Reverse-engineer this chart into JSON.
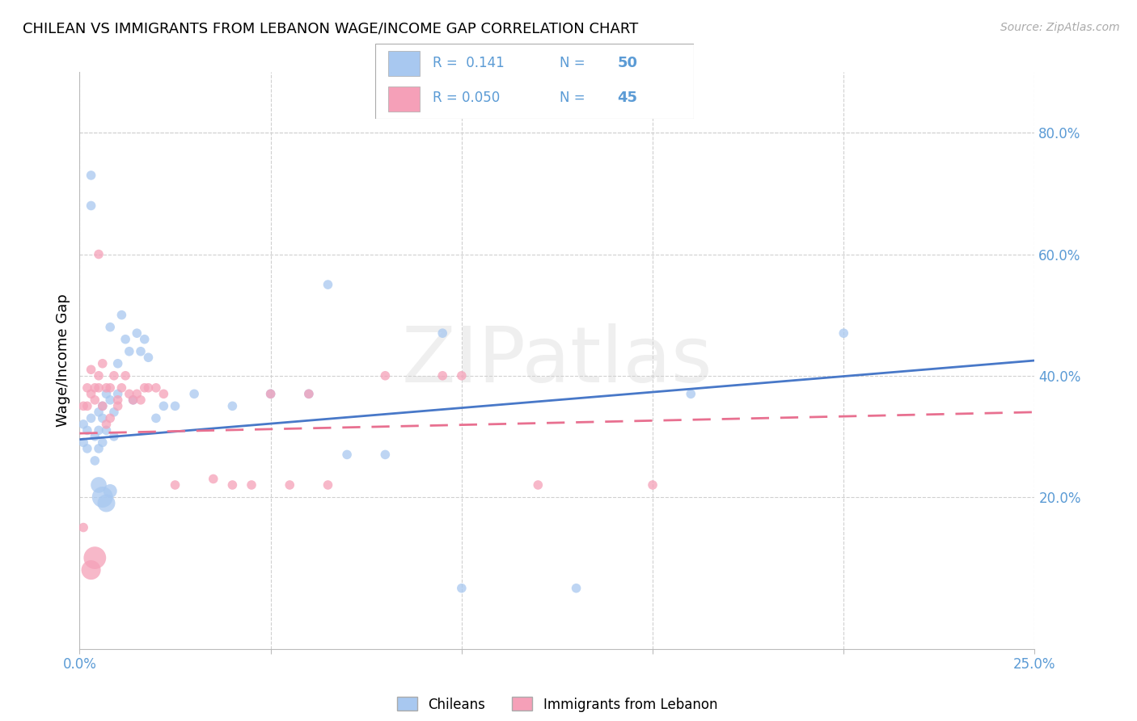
{
  "title": "CHILEAN VS IMMIGRANTS FROM LEBANON WAGE/INCOME GAP CORRELATION CHART",
  "source": "Source: ZipAtlas.com",
  "ylabel": "Wage/Income Gap",
  "xlim": [
    0.0,
    0.25
  ],
  "ylim": [
    -0.05,
    0.9
  ],
  "xtick_positions": [
    0.0,
    0.05,
    0.1,
    0.15,
    0.2,
    0.25
  ],
  "xtick_labels": [
    "0.0%",
    "",
    "",
    "",
    "",
    "25.0%"
  ],
  "ytick_positions": [
    0.2,
    0.4,
    0.6,
    0.8
  ],
  "ytick_labels": [
    "20.0%",
    "40.0%",
    "60.0%",
    "80.0%"
  ],
  "watermark": "ZIPatlas",
  "blue_color": "#A8C8F0",
  "pink_color": "#F5A0B8",
  "blue_line_color": "#4878C8",
  "pink_line_color": "#E87090",
  "axis_label_color": "#5B9BD5",
  "grid_color": "#D0D0D0",
  "chileans_x": [
    0.001,
    0.001,
    0.002,
    0.002,
    0.003,
    0.003,
    0.004,
    0.004,
    0.005,
    0.005,
    0.005,
    0.006,
    0.006,
    0.006,
    0.007,
    0.007,
    0.008,
    0.008,
    0.009,
    0.009,
    0.01,
    0.01,
    0.011,
    0.012,
    0.013,
    0.014,
    0.015,
    0.016,
    0.017,
    0.018,
    0.02,
    0.022,
    0.025,
    0.03,
    0.04,
    0.05,
    0.06,
    0.065,
    0.07,
    0.08,
    0.095,
    0.1,
    0.13,
    0.16,
    0.2,
    0.005,
    0.006,
    0.007,
    0.008,
    0.003
  ],
  "chileans_y": [
    0.32,
    0.29,
    0.31,
    0.28,
    0.68,
    0.33,
    0.3,
    0.26,
    0.34,
    0.28,
    0.31,
    0.35,
    0.29,
    0.33,
    0.37,
    0.31,
    0.36,
    0.48,
    0.34,
    0.3,
    0.42,
    0.37,
    0.5,
    0.46,
    0.44,
    0.36,
    0.47,
    0.44,
    0.46,
    0.43,
    0.33,
    0.35,
    0.35,
    0.37,
    0.35,
    0.37,
    0.37,
    0.55,
    0.27,
    0.27,
    0.47,
    0.05,
    0.05,
    0.37,
    0.47,
    0.22,
    0.2,
    0.19,
    0.21,
    0.73
  ],
  "chileans_size": [
    70,
    70,
    70,
    70,
    70,
    70,
    70,
    70,
    70,
    70,
    70,
    70,
    70,
    70,
    70,
    70,
    70,
    70,
    70,
    70,
    70,
    70,
    70,
    70,
    70,
    70,
    70,
    70,
    70,
    70,
    70,
    70,
    70,
    70,
    70,
    70,
    70,
    70,
    70,
    70,
    70,
    70,
    70,
    70,
    70,
    200,
    350,
    250,
    150,
    70
  ],
  "lebanon_x": [
    0.001,
    0.001,
    0.002,
    0.002,
    0.003,
    0.003,
    0.004,
    0.004,
    0.005,
    0.005,
    0.005,
    0.006,
    0.006,
    0.007,
    0.007,
    0.008,
    0.008,
    0.009,
    0.01,
    0.01,
    0.011,
    0.012,
    0.013,
    0.014,
    0.015,
    0.016,
    0.017,
    0.018,
    0.02,
    0.022,
    0.025,
    0.035,
    0.04,
    0.045,
    0.05,
    0.055,
    0.06,
    0.065,
    0.08,
    0.095,
    0.1,
    0.12,
    0.15,
    0.003,
    0.004
  ],
  "lebanon_y": [
    0.15,
    0.35,
    0.35,
    0.38,
    0.37,
    0.41,
    0.38,
    0.36,
    0.4,
    0.38,
    0.6,
    0.42,
    0.35,
    0.32,
    0.38,
    0.33,
    0.38,
    0.4,
    0.36,
    0.35,
    0.38,
    0.4,
    0.37,
    0.36,
    0.37,
    0.36,
    0.38,
    0.38,
    0.38,
    0.37,
    0.22,
    0.23,
    0.22,
    0.22,
    0.37,
    0.22,
    0.37,
    0.22,
    0.4,
    0.4,
    0.4,
    0.22,
    0.22,
    0.08,
    0.1
  ],
  "lebanon_size": [
    70,
    70,
    70,
    70,
    70,
    70,
    70,
    70,
    70,
    70,
    70,
    70,
    70,
    70,
    70,
    70,
    70,
    70,
    70,
    70,
    70,
    70,
    70,
    70,
    70,
    70,
    70,
    70,
    70,
    70,
    70,
    70,
    70,
    70,
    70,
    70,
    70,
    70,
    70,
    70,
    70,
    70,
    70,
    300,
    400
  ]
}
